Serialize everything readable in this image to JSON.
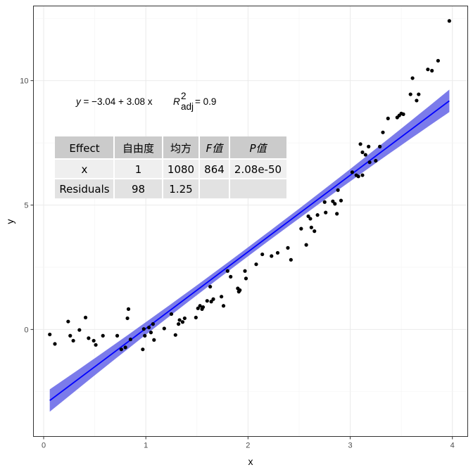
{
  "chart_data": {
    "type": "scatter",
    "xlabel": "x",
    "ylabel": "y",
    "xlim": [
      -0.1,
      4.15
    ],
    "ylim": [
      -4.3,
      13.0
    ],
    "x_ticks": [
      0,
      1,
      2,
      3,
      4
    ],
    "y_ticks": [
      0,
      5,
      10
    ],
    "x_tick_labels": [
      "0",
      "1",
      "2",
      "3",
      "4"
    ],
    "y_tick_labels": [
      "0",
      "5",
      "10"
    ],
    "grid": true,
    "point_color": "#000000",
    "fit_line_color": "#0000ff",
    "band_color": "#7b7bea",
    "fit": {
      "intercept": -3.04,
      "slope": 3.08,
      "x_range": [
        0.06,
        3.97
      ]
    },
    "confidence_band_halfwidth": [
      0.45,
      0.18,
      0.45
    ],
    "equation": {
      "lhs": "y",
      "rhs": "= −3.04 + 3.08 x",
      "r2_symbol": "R",
      "r2_superscript": "2",
      "r2_subscript": "adj",
      "r2_value": "= 0.9"
    },
    "table": {
      "header": [
        "Effect",
        "自由度",
        "均方",
        "F值",
        "P值"
      ],
      "rows": [
        [
          "x",
          "1",
          "1080",
          "864",
          "2.08e-50"
        ],
        [
          "Residuals",
          "98",
          "1.25",
          "",
          ""
        ]
      ]
    },
    "points": [
      {
        "x": 0.06,
        "y": -0.2
      },
      {
        "x": 0.11,
        "y": -0.58
      },
      {
        "x": 0.24,
        "y": 0.32
      },
      {
        "x": 0.26,
        "y": -0.25
      },
      {
        "x": 0.29,
        "y": -0.45
      },
      {
        "x": 0.35,
        "y": -0.02
      },
      {
        "x": 0.41,
        "y": 0.48
      },
      {
        "x": 0.44,
        "y": -0.35
      },
      {
        "x": 0.49,
        "y": -0.45
      },
      {
        "x": 0.51,
        "y": -0.62
      },
      {
        "x": 0.58,
        "y": -0.25
      },
      {
        "x": 0.72,
        "y": -0.25
      },
      {
        "x": 0.76,
        "y": -0.8
      },
      {
        "x": 0.8,
        "y": -0.72
      },
      {
        "x": 0.82,
        "y": 0.45
      },
      {
        "x": 0.83,
        "y": 0.82
      },
      {
        "x": 0.85,
        "y": -0.4
      },
      {
        "x": 0.97,
        "y": -0.8
      },
      {
        "x": 0.98,
        "y": 0.02
      },
      {
        "x": 0.99,
        "y": -0.25
      },
      {
        "x": 1.03,
        "y": 0.08
      },
      {
        "x": 1.05,
        "y": -0.12
      },
      {
        "x": 1.07,
        "y": 0.22
      },
      {
        "x": 1.08,
        "y": -0.42
      },
      {
        "x": 1.18,
        "y": 0.04
      },
      {
        "x": 1.25,
        "y": 0.62
      },
      {
        "x": 1.29,
        "y": -0.22
      },
      {
        "x": 1.32,
        "y": 0.22
      },
      {
        "x": 1.33,
        "y": 0.38
      },
      {
        "x": 1.36,
        "y": 0.3
      },
      {
        "x": 1.38,
        "y": 0.45
      },
      {
        "x": 1.49,
        "y": 0.48
      },
      {
        "x": 1.51,
        "y": 0.85
      },
      {
        "x": 1.53,
        "y": 0.95
      },
      {
        "x": 1.55,
        "y": 0.82
      },
      {
        "x": 1.56,
        "y": 0.9
      },
      {
        "x": 1.6,
        "y": 1.15
      },
      {
        "x": 1.63,
        "y": 1.72
      },
      {
        "x": 1.64,
        "y": 1.12
      },
      {
        "x": 1.66,
        "y": 1.22
      },
      {
        "x": 1.74,
        "y": 1.32
      },
      {
        "x": 1.76,
        "y": 0.95
      },
      {
        "x": 1.8,
        "y": 2.35
      },
      {
        "x": 1.83,
        "y": 2.12
      },
      {
        "x": 1.9,
        "y": 1.65
      },
      {
        "x": 1.91,
        "y": 1.52
      },
      {
        "x": 1.92,
        "y": 1.58
      },
      {
        "x": 1.97,
        "y": 2.35
      },
      {
        "x": 1.98,
        "y": 2.05
      },
      {
        "x": 2.08,
        "y": 2.62
      },
      {
        "x": 2.14,
        "y": 3.02
      },
      {
        "x": 2.23,
        "y": 2.95
      },
      {
        "x": 2.29,
        "y": 3.08
      },
      {
        "x": 2.39,
        "y": 3.28
      },
      {
        "x": 2.42,
        "y": 2.8
      },
      {
        "x": 2.52,
        "y": 4.05
      },
      {
        "x": 2.57,
        "y": 3.4
      },
      {
        "x": 2.59,
        "y": 4.55
      },
      {
        "x": 2.61,
        "y": 4.45
      },
      {
        "x": 2.62,
        "y": 4.1
      },
      {
        "x": 2.65,
        "y": 3.95
      },
      {
        "x": 2.68,
        "y": 4.6
      },
      {
        "x": 2.75,
        "y": 5.12
      },
      {
        "x": 2.76,
        "y": 4.7
      },
      {
        "x": 2.83,
        "y": 5.15
      },
      {
        "x": 2.85,
        "y": 5.05
      },
      {
        "x": 2.87,
        "y": 4.65
      },
      {
        "x": 2.88,
        "y": 5.6
      },
      {
        "x": 2.91,
        "y": 5.18
      },
      {
        "x": 3.02,
        "y": 6.32
      },
      {
        "x": 3.06,
        "y": 6.2
      },
      {
        "x": 3.08,
        "y": 6.15
      },
      {
        "x": 3.1,
        "y": 7.45
      },
      {
        "x": 3.12,
        "y": 6.2
      },
      {
        "x": 3.12,
        "y": 7.12
      },
      {
        "x": 3.15,
        "y": 7.02
      },
      {
        "x": 3.18,
        "y": 7.35
      },
      {
        "x": 3.19,
        "y": 6.72
      },
      {
        "x": 3.25,
        "y": 6.78
      },
      {
        "x": 3.29,
        "y": 7.35
      },
      {
        "x": 3.32,
        "y": 7.92
      },
      {
        "x": 3.37,
        "y": 8.48
      },
      {
        "x": 3.46,
        "y": 8.52
      },
      {
        "x": 3.48,
        "y": 8.6
      },
      {
        "x": 3.5,
        "y": 8.68
      },
      {
        "x": 3.52,
        "y": 8.65
      },
      {
        "x": 3.59,
        "y": 9.45
      },
      {
        "x": 3.61,
        "y": 10.1
      },
      {
        "x": 3.65,
        "y": 9.2
      },
      {
        "x": 3.67,
        "y": 9.45
      },
      {
        "x": 3.76,
        "y": 10.45
      },
      {
        "x": 3.8,
        "y": 10.4
      },
      {
        "x": 3.86,
        "y": 10.8
      },
      {
        "x": 3.97,
        "y": 12.4
      }
    ]
  }
}
